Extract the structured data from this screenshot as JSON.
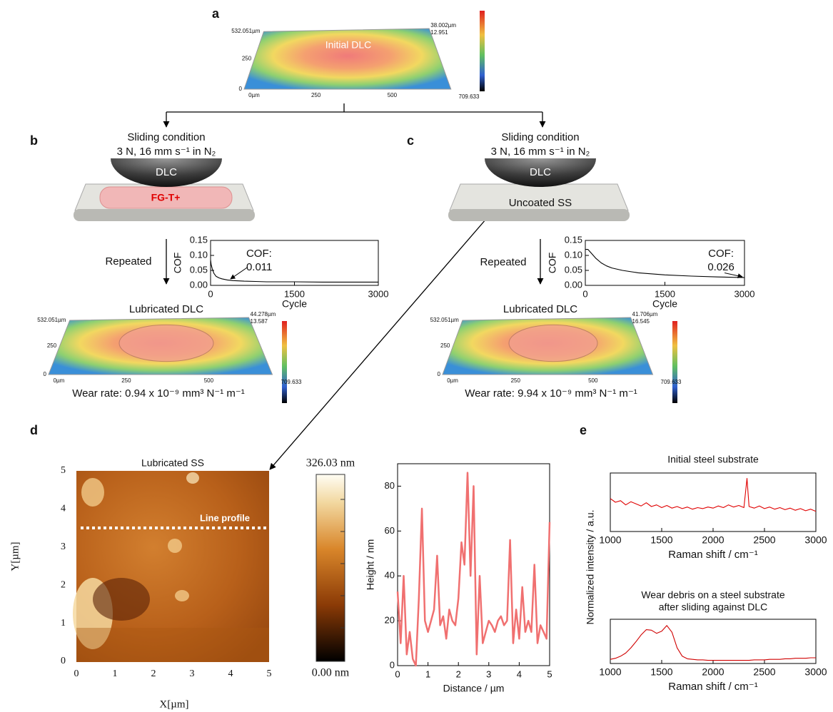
{
  "panels": {
    "a": {
      "letter": "a",
      "caption": "Initial DLC",
      "axis_labels": [
        "532.051µm",
        "250",
        "0",
        "0µm",
        "250",
        "500",
        "709.633",
        "38.002µm",
        "12.951"
      ]
    },
    "b": {
      "letter": "b",
      "condition_title": "Sliding condition",
      "condition": "3 N, 16 mm s⁻¹ in N₂",
      "ball": "DLC",
      "lubricant": "FG-T+",
      "step": "Repeated",
      "image_title": "Lubricated DLC",
      "axis_labels": [
        "532.051µm",
        "250",
        "0",
        "0µm",
        "250",
        "500",
        "709.633",
        "44.278µm",
        "13.587"
      ],
      "wear_rate": "Wear rate: 0.94 x 10⁻⁹ mm³ N⁻¹ m⁻¹"
    },
    "c": {
      "letter": "c",
      "condition_title": "Sliding condition",
      "condition": "3 N, 16 mm s⁻¹ in N₂",
      "ball": "DLC",
      "substrate": "Uncoated SS",
      "step": "Repeated",
      "image_title": "Lubricated DLC",
      "axis_labels": [
        "532.051µm",
        "250",
        "0",
        "0µm",
        "250",
        "500",
        "709.633",
        "41.706µm",
        "16.545"
      ],
      "wear_rate": "Wear rate: 9.94 x 10⁻⁹ mm³ N⁻¹ m⁻¹"
    },
    "d": {
      "letter": "d",
      "image_title": "Lubricated SS",
      "line_profile": "Line profile",
      "xticks": [
        "0",
        "1",
        "2",
        "3",
        "4",
        "5"
      ],
      "yticks": [
        "0",
        "1",
        "2",
        "3",
        "4",
        "5"
      ],
      "x_label": "X[µm]",
      "y_label": "Y[µm]",
      "colorbar_max": "326.03 nm",
      "colorbar_min": "0.00 nm"
    },
    "e": {
      "letter": "e",
      "y_label": "Normalized intensity / a.u."
    }
  },
  "chart_data": [
    {
      "type": "line",
      "x_label": "Cycle",
      "y_label": "COF",
      "annotation": [
        "COF:",
        "0.011"
      ],
      "color": "#000000",
      "x": [
        0,
        10,
        30,
        60,
        100,
        150,
        200,
        300,
        400,
        500,
        600,
        800,
        1000,
        1500,
        2000,
        2500,
        3000
      ],
      "values": [
        0.085,
        0.07,
        0.055,
        0.04,
        0.03,
        0.025,
        0.022,
        0.018,
        0.016,
        0.015,
        0.014,
        0.013,
        0.012,
        0.012,
        0.011,
        0.011,
        0.011
      ],
      "xlim": [
        0,
        3000
      ],
      "xticks": [
        0,
        1500,
        3000
      ],
      "ylim": [
        0,
        0.15
      ],
      "yticks": [
        {
          "value": 0,
          "label": "0.00"
        },
        0.05,
        {
          "value": 0.1,
          "label": "0.10"
        },
        0.15
      ]
    },
    {
      "type": "line",
      "x_label": "Cycle",
      "y_label": "COF",
      "annotation": [
        "COF:",
        "0.026"
      ],
      "color": "#000000",
      "x": [
        0,
        50,
        100,
        200,
        300,
        400,
        500,
        700,
        1000,
        1500,
        2000,
        2500,
        3000
      ],
      "values": [
        0.12,
        0.12,
        0.11,
        0.09,
        0.075,
        0.065,
        0.058,
        0.05,
        0.042,
        0.035,
        0.031,
        0.028,
        0.026
      ],
      "xlim": [
        0,
        3000
      ],
      "xticks": [
        0,
        1500,
        3000
      ],
      "ylim": [
        0,
        0.15
      ],
      "yticks": [
        {
          "value": 0,
          "label": "0.00"
        },
        0.05,
        {
          "value": 0.1,
          "label": "0.10"
        },
        0.15
      ]
    },
    {
      "type": "line",
      "x_label": "Distance / µm",
      "y_label": "Height / nm",
      "color": "#f07070",
      "x": [
        0,
        0.1,
        0.2,
        0.3,
        0.4,
        0.5,
        0.6,
        0.7,
        0.8,
        0.9,
        1.0,
        1.1,
        1.2,
        1.3,
        1.4,
        1.5,
        1.6,
        1.7,
        1.8,
        1.9,
        2.0,
        2.1,
        2.2,
        2.3,
        2.4,
        2.5,
        2.6,
        2.7,
        2.8,
        2.9,
        3.0,
        3.1,
        3.2,
        3.3,
        3.4,
        3.5,
        3.6,
        3.7,
        3.8,
        3.9,
        4.0,
        4.1,
        4.2,
        4.3,
        4.4,
        4.5,
        4.6,
        4.7,
        4.8,
        4.9,
        5.0
      ],
      "values": [
        33,
        10,
        40,
        5,
        15,
        3,
        0,
        30,
        70,
        20,
        15,
        20,
        25,
        49,
        18,
        22,
        12,
        25,
        20,
        18,
        30,
        55,
        45,
        86,
        40,
        80,
        5,
        40,
        10,
        15,
        20,
        18,
        15,
        20,
        22,
        18,
        20,
        56,
        10,
        25,
        12,
        35,
        15,
        20,
        15,
        45,
        10,
        18,
        15,
        12,
        64
      ],
      "xlim": [
        0,
        5
      ],
      "xticks": [
        0,
        1,
        2,
        3,
        4,
        5
      ],
      "ylim": [
        0,
        90
      ],
      "yticks": [
        0,
        20,
        40,
        60,
        80
      ]
    },
    {
      "type": "line",
      "title": "Initial steel substrate",
      "x_label": "Raman shift / cm⁻¹",
      "color": "#e00000",
      "x": [
        1000,
        1050,
        1100,
        1150,
        1200,
        1250,
        1300,
        1350,
        1400,
        1450,
        1500,
        1550,
        1600,
        1650,
        1700,
        1750,
        1800,
        1850,
        1900,
        1950,
        2000,
        2050,
        2100,
        2150,
        2200,
        2250,
        2300,
        2330,
        2350,
        2400,
        2450,
        2500,
        2550,
        2600,
        2650,
        2700,
        2750,
        2800,
        2850,
        2900,
        2950,
        3000
      ],
      "values": [
        0.62,
        0.55,
        0.58,
        0.5,
        0.56,
        0.52,
        0.48,
        0.54,
        0.47,
        0.5,
        0.45,
        0.49,
        0.44,
        0.47,
        0.43,
        0.46,
        0.42,
        0.45,
        0.43,
        0.46,
        0.44,
        0.48,
        0.45,
        0.5,
        0.46,
        0.49,
        0.45,
        1.0,
        0.47,
        0.44,
        0.48,
        0.43,
        0.46,
        0.42,
        0.45,
        0.41,
        0.44,
        0.4,
        0.43,
        0.39,
        0.42,
        0.38
      ],
      "xlim": [
        1000,
        3000
      ],
      "xticks": [
        1000,
        1500,
        2000,
        2500,
        3000
      ],
      "ylim": [
        0,
        1.1
      ]
    },
    {
      "type": "line",
      "title": "Wear debris on a steel substrate",
      "subtitle": "after sliding against DLC",
      "x_label": "Raman shift / cm⁻¹",
      "color": "#d00000",
      "x": [
        1000,
        1050,
        1100,
        1150,
        1200,
        1250,
        1300,
        1350,
        1400,
        1450,
        1500,
        1550,
        1600,
        1650,
        1700,
        1750,
        1800,
        1850,
        1900,
        1950,
        2000,
        2050,
        2100,
        2150,
        2200,
        2250,
        2300,
        2350,
        2400,
        2450,
        2500,
        2550,
        2600,
        2650,
        2700,
        2750,
        2800,
        2850,
        2900,
        2950,
        3000
      ],
      "values": [
        0.08,
        0.1,
        0.14,
        0.2,
        0.3,
        0.42,
        0.55,
        0.65,
        0.64,
        0.58,
        0.62,
        0.73,
        0.6,
        0.3,
        0.14,
        0.09,
        0.08,
        0.07,
        0.07,
        0.06,
        0.06,
        0.06,
        0.06,
        0.06,
        0.06,
        0.06,
        0.06,
        0.06,
        0.07,
        0.07,
        0.07,
        0.08,
        0.08,
        0.08,
        0.09,
        0.09,
        0.1,
        0.1,
        0.1,
        0.11,
        0.11
      ],
      "xlim": [
        1000,
        3000
      ],
      "xticks": [
        1000,
        1500,
        2000,
        2500,
        3000
      ],
      "ylim": [
        0,
        0.85
      ]
    }
  ]
}
